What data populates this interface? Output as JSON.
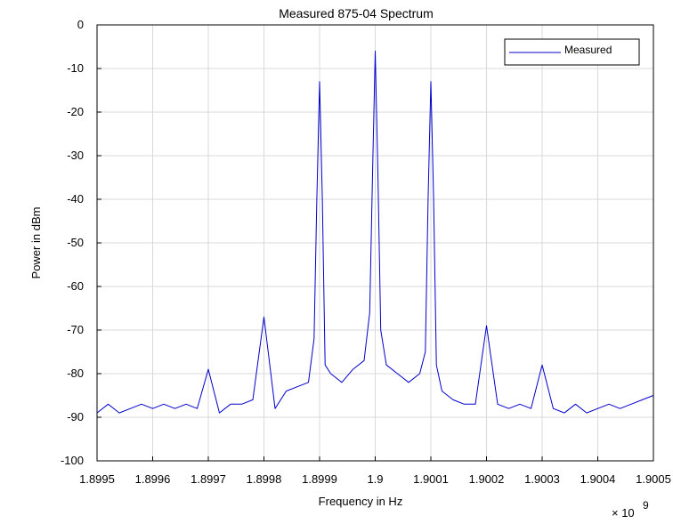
{
  "chart_data": {
    "type": "line",
    "title": "Measured 875-04 Spectrum",
    "xlabel": "Frequency in Hz",
    "ylabel": "Power in dBm",
    "x_multiplier_label": "× 10",
    "x_multiplier_exponent": "9",
    "xlim": [
      1.8995,
      1.9005
    ],
    "ylim": [
      -100,
      0
    ],
    "x_ticks": [
      1.8995,
      1.8996,
      1.8997,
      1.8998,
      1.8999,
      1.9,
      1.9001,
      1.9002,
      1.9003,
      1.9004,
      1.9005
    ],
    "x_tick_labels": [
      "1.8995",
      "1.8996",
      "1.8997",
      "1.8998",
      "1.8999",
      "1.9",
      "1.9001",
      "1.9002",
      "1.9003",
      "1.9004",
      "1.9005"
    ],
    "y_ticks": [
      0,
      -10,
      -20,
      -30,
      -40,
      -50,
      -60,
      -70,
      -80,
      -90,
      -100
    ],
    "y_tick_labels": [
      "0",
      "-10",
      "-20",
      "-30",
      "-40",
      "-50",
      "-60",
      "-70",
      "-80",
      "-90",
      "-100"
    ],
    "grid": true,
    "legend": {
      "entries": [
        "Measured"
      ],
      "placement": "top-right"
    },
    "series": [
      {
        "name": "Measured",
        "color": "#0000cc",
        "x": [
          1.8995,
          1.89952,
          1.89954,
          1.89956,
          1.89958,
          1.8996,
          1.89962,
          1.89964,
          1.89966,
          1.89968,
          1.8997,
          1.89972,
          1.89974,
          1.89976,
          1.89978,
          1.8998,
          1.89982,
          1.89984,
          1.89986,
          1.89988,
          1.89989,
          1.899895,
          1.8999,
          1.899905,
          1.89991,
          1.89992,
          1.89994,
          1.89996,
          1.89998,
          1.89999,
          1.899995,
          1.9,
          1.900005,
          1.90001,
          1.90002,
          1.90004,
          1.90006,
          1.90008,
          1.90009,
          1.900095,
          1.9001,
          1.900105,
          1.90011,
          1.90012,
          1.90014,
          1.90016,
          1.90018,
          1.9002,
          1.90022,
          1.90024,
          1.90026,
          1.90028,
          1.9003,
          1.90032,
          1.90034,
          1.90036,
          1.90038,
          1.9004,
          1.90042,
          1.90044,
          1.90046,
          1.90048,
          1.9005
        ],
        "y": [
          -89,
          -87,
          -89,
          -88,
          -87,
          -88,
          -87,
          -88,
          -87,
          -88,
          -79,
          -89,
          -87,
          -87,
          -86,
          -67,
          -88,
          -84,
          -83,
          -82,
          -72,
          -40,
          -13,
          -40,
          -78,
          -80,
          -82,
          -79,
          -77,
          -66,
          -35,
          -6,
          -35,
          -70,
          -78,
          -80,
          -82,
          -80,
          -75,
          -40,
          -13,
          -40,
          -78,
          -84,
          -86,
          -87,
          -87,
          -69,
          -87,
          -88,
          -87,
          -88,
          -78,
          -88,
          -89,
          -87,
          -89,
          -88,
          -87,
          -88,
          -87,
          -86,
          -85
        ]
      }
    ]
  }
}
